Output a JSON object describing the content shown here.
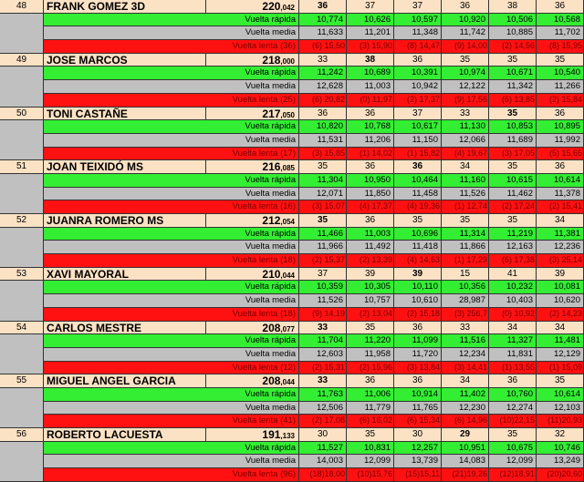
{
  "labels": {
    "fast": "Vuelta rápida",
    "avg": "Vuelta media",
    "slow_prefix": "Vuelta   lenta"
  },
  "drivers": [
    {
      "pos": "48",
      "name": "FRANK GOMEZ 3D",
      "score_int": "220",
      "score_dec": ",042",
      "laps": [
        "36",
        "37",
        "37",
        "36",
        "38",
        "36"
      ],
      "bold": [
        0
      ],
      "fast": [
        "10,774",
        "10,626",
        "10,597",
        "10,920",
        "10,506",
        "10,568"
      ],
      "avg": [
        "11,633",
        "11,201",
        "11,348",
        "11,742",
        "10,885",
        "11,702"
      ],
      "slow_count": "(36)",
      "slow": [
        "(6) 15,50",
        "(3) 15,90",
        "(8) 14,47",
        "(9) 14,00",
        "(2) 14,56",
        "(8) 15,95"
      ]
    },
    {
      "pos": "49",
      "name": "JOSE MARCOS",
      "score_int": "218",
      "score_dec": ",000",
      "laps": [
        "33",
        "38",
        "36",
        "35",
        "35",
        "35"
      ],
      "bold": [
        1
      ],
      "fast": [
        "11,242",
        "10,689",
        "10,391",
        "10,974",
        "10,671",
        "10,540"
      ],
      "avg": [
        "12,628",
        "11,003",
        "10,942",
        "12,122",
        "11,342",
        "11,266"
      ],
      "slow_count": "(25)",
      "slow": [
        "(6) 20,82",
        "(0) 11,97",
        "(2) 17,37",
        "(9) 17,56",
        "(6) 13,85",
        "(2) 15,84"
      ]
    },
    {
      "pos": "50",
      "name": "TONI CASTAÑE",
      "score_int": "217",
      "score_dec": ",050",
      "laps": [
        "36",
        "36",
        "37",
        "33",
        "35",
        "36"
      ],
      "bold": [
        4
      ],
      "fast": [
        "10,820",
        "10,768",
        "10,617",
        "11,130",
        "10,853",
        "10,895"
      ],
      "avg": [
        "11,531",
        "11,206",
        "11,150",
        "12,066",
        "11,689",
        "11,992"
      ],
      "slow_count": "(17)",
      "slow": [
        "(3) 15,85",
        "(1) 14,02",
        "(1) 15,82",
        "(4) 19,67",
        "(3) 17,05",
        "(5) 15,65"
      ]
    },
    {
      "pos": "51",
      "name": "JOAN TEIXIDÓ MS",
      "score_int": "216",
      "score_dec": ",085",
      "laps": [
        "35",
        "36",
        "36",
        "34",
        "35",
        "36"
      ],
      "bold": [
        2
      ],
      "fast": [
        "11,304",
        "10,950",
        "10,464",
        "11,160",
        "10,615",
        "10,614"
      ],
      "avg": [
        "12,071",
        "11,850",
        "11,458",
        "11,526",
        "11,462",
        "11,378"
      ],
      "slow_count": "(16)",
      "slow": [
        "(3) 15,07",
        "(4) 17,37",
        "(4) 19,36",
        "(1) 12,74",
        "(2) 17,24",
        "(2) 15,41"
      ]
    },
    {
      "pos": "52",
      "name": "JUANRA ROMERO MS",
      "score_int": "212",
      "score_dec": ",054",
      "laps": [
        "35",
        "36",
        "35",
        "35",
        "35",
        "34"
      ],
      "bold": [
        0
      ],
      "fast": [
        "11,466",
        "11,003",
        "10,696",
        "11,314",
        "11,219",
        "11,381"
      ],
      "avg": [
        "11,966",
        "11,492",
        "11,418",
        "11,866",
        "12,163",
        "12,236"
      ],
      "slow_count": "(18)",
      "slow": [
        "(2) 15,37",
        "(2) 13,39",
        "(4) 14,63",
        "(1) 17,29",
        "(6) 17,38",
        "(3) 25,14"
      ]
    },
    {
      "pos": "53",
      "name": "XAVI MAYORAL",
      "score_int": "210",
      "score_dec": ",044",
      "laps": [
        "37",
        "39",
        "39",
        "15",
        "41",
        "39"
      ],
      "bold": [
        2
      ],
      "fast": [
        "10,359",
        "10,305",
        "10,110",
        "10,356",
        "10,232",
        "10,081"
      ],
      "avg": [
        "11,526",
        "10,757",
        "10,610",
        "28,987",
        "10,403",
        "10,620"
      ],
      "slow_count": "(18)",
      "slow": [
        "(9) 14,19",
        "(2) 13,04",
        "(2) 15,18",
        "(3) 256,7",
        "(0) 10,92",
        "(2) 14,23"
      ]
    },
    {
      "pos": "54",
      "name": "CARLOS MESTRE",
      "score_int": "208",
      "score_dec": ",077",
      "laps": [
        "33",
        "35",
        "36",
        "33",
        "34",
        "34"
      ],
      "bold": [
        0
      ],
      "fast": [
        "11,704",
        "11,220",
        "11,099",
        "11,516",
        "11,327",
        "11,481"
      ],
      "avg": [
        "12,603",
        "11,958",
        "11,720",
        "12,234",
        "11,831",
        "12,129"
      ],
      "slow_count": "(12)",
      "slow": [
        "(2) 15,31",
        "(2) 15,96",
        "(3) 13,84",
        "(3) 14,41",
        "(1) 13,55",
        "(1) 15,09"
      ]
    },
    {
      "pos": "55",
      "name": "MIGUEL ANGEL GARCIA",
      "score_int": "208",
      "score_dec": ",044",
      "laps": [
        "33",
        "36",
        "36",
        "34",
        "36",
        "35"
      ],
      "bold": [
        0
      ],
      "fast": [
        "11,763",
        "11,006",
        "10,914",
        "11,402",
        "10,760",
        "10,614"
      ],
      "avg": [
        "12,506",
        "11,779",
        "11,765",
        "12,230",
        "12,274",
        "12,103"
      ],
      "slow_count": "(41)",
      "slow": [
        "(2) 17,08",
        "(6) 16,02",
        "(6) 15,34",
        "(6) 14,96",
        "(10)22,15",
        "(11)20,93"
      ]
    },
    {
      "pos": "56",
      "name": "ROBERTO LACUESTA",
      "score_int": "191",
      "score_dec": ",133",
      "laps": [
        "30",
        "35",
        "30",
        "29",
        "35",
        "32"
      ],
      "bold": [
        3
      ],
      "fast": [
        "11,527",
        "10,831",
        "12,257",
        "10,951",
        "10,675",
        "10,746"
      ],
      "avg": [
        "14,003",
        "12,099",
        "13,739",
        "14,083",
        "12,099",
        "13,249"
      ],
      "slow_count": "(96)",
      "slow": [
        "(18)18,00",
        "(10)15,76",
        "(15)15,11",
        "(21)19,26",
        "(12)18,91",
        "(20)20,60"
      ]
    }
  ]
}
